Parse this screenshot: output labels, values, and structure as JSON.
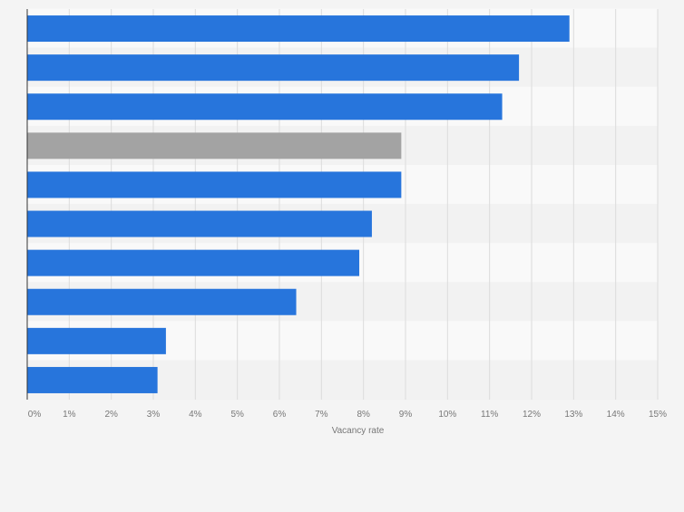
{
  "chart_data": {
    "type": "bar",
    "orientation": "horizontal",
    "values": [
      12.9,
      11.7,
      11.3,
      8.9,
      8.9,
      8.2,
      7.9,
      6.4,
      3.3,
      3.1
    ],
    "highlight_index": 3,
    "xlabel": "Vacancy rate",
    "xlim": [
      0,
      15
    ],
    "xticks": [
      "0%",
      "1%",
      "2%",
      "3%",
      "4%",
      "5%",
      "6%",
      "7%",
      "8%",
      "9%",
      "10%",
      "11%",
      "12%",
      "13%",
      "14%",
      "15%"
    ],
    "grid": true,
    "colors": {
      "bar": "#2775dc",
      "highlight_bar": "#a3a3a3",
      "band_light": "#f9f9f9",
      "band_dark": "#f2f2f2",
      "grid": "#dcdcdc",
      "axis": "#333333",
      "tick_text": "#777777"
    }
  }
}
